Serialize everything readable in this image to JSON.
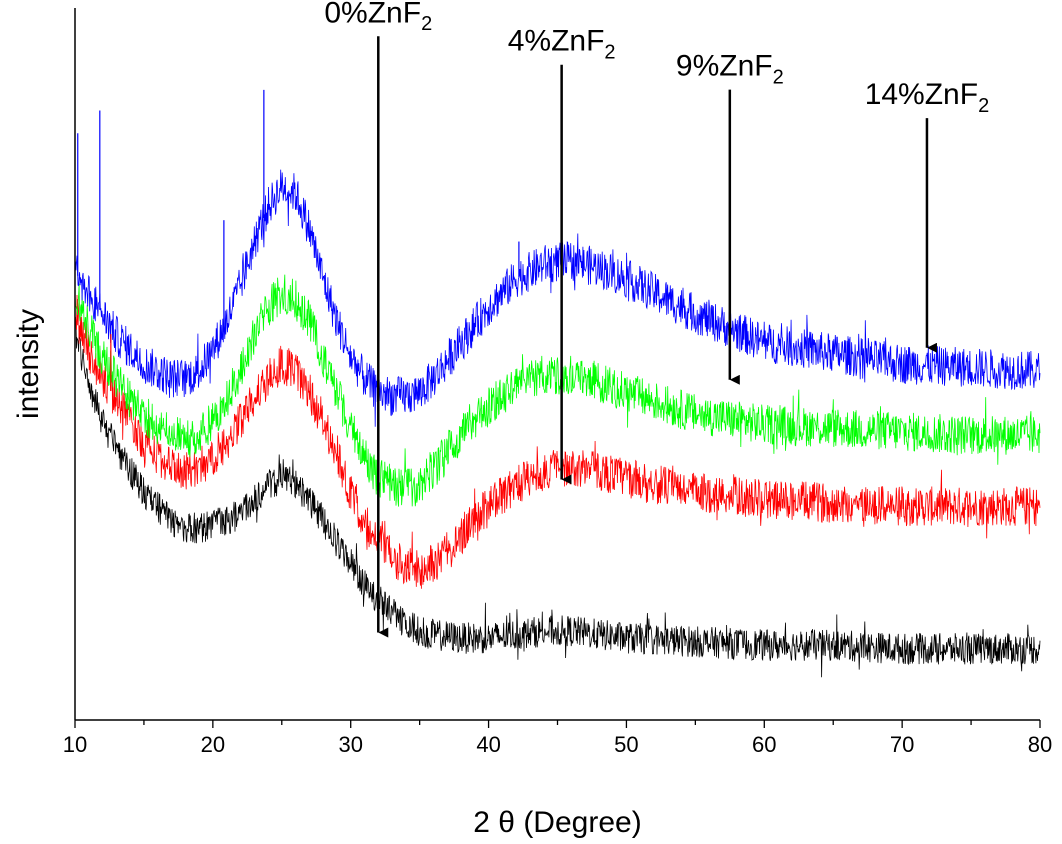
{
  "chart_data": {
    "type": "line",
    "title": "",
    "xlabel": "2 θ (Degree)",
    "ylabel": "intensity",
    "xlim": [
      10,
      80
    ],
    "ylim": [
      0,
      100
    ],
    "x_ticks": [
      "10",
      "20",
      "30",
      "40",
      "50",
      "60",
      "70",
      "80"
    ],
    "y_ticks_visible": false,
    "grid": false,
    "legend": "none",
    "series": [
      {
        "color": "#000000",
        "x": [
          10,
          11,
          12,
          13,
          14,
          15,
          16,
          17,
          18,
          19,
          20,
          21,
          22,
          23,
          24,
          25,
          26,
          27,
          28,
          29,
          30,
          31,
          32,
          33,
          34,
          35,
          36,
          38,
          40,
          42,
          44,
          46,
          48,
          50,
          55,
          60,
          65,
          70,
          75,
          80
        ],
        "values": [
          55,
          47,
          42,
          38,
          35,
          32,
          30,
          28,
          27,
          27,
          27.5,
          28,
          29,
          31,
          33,
          34,
          33,
          31,
          28,
          25,
          22,
          19,
          17,
          15,
          13.5,
          12.5,
          12,
          11.5,
          11.5,
          12,
          12.5,
          12.5,
          12,
          11.5,
          11,
          10.5,
          10.5,
          10,
          10,
          10
        ]
      },
      {
        "color": "#ff0000",
        "x": [
          10,
          11,
          12,
          13,
          14,
          15,
          16,
          17,
          18,
          19,
          20,
          21,
          22,
          23,
          24,
          25,
          26,
          27,
          28,
          29,
          30,
          31,
          32,
          33,
          34,
          35,
          36,
          38,
          40,
          42,
          44,
          46,
          48,
          50,
          55,
          60,
          65,
          70,
          75,
          80
        ],
        "values": [
          58,
          52,
          48,
          45,
          42,
          39,
          37,
          35.5,
          35,
          35.5,
          37,
          39,
          42,
          45,
          48,
          50,
          49,
          46,
          42,
          37,
          32,
          28,
          25,
          23,
          21.5,
          21,
          22,
          26,
          30,
          33,
          35,
          35.5,
          35,
          34,
          32,
          31,
          30.5,
          30,
          30,
          30
        ]
      },
      {
        "color": "#00ff00",
        "x": [
          10,
          11,
          12,
          13,
          14,
          15,
          16,
          17,
          18,
          19,
          20,
          21,
          22,
          23,
          24,
          25,
          26,
          27,
          28,
          29,
          30,
          31,
          32,
          33,
          34,
          35,
          36,
          38,
          40,
          42,
          44,
          46,
          48,
          50,
          55,
          60,
          65,
          70,
          75,
          80
        ],
        "values": [
          60,
          55,
          51,
          48,
          45,
          43,
          41,
          40,
          39.5,
          40,
          42,
          45,
          49,
          54,
          58,
          60,
          59,
          56,
          51,
          46,
          41,
          37,
          34,
          33,
          32.5,
          33,
          35,
          40,
          44,
          47,
          48.5,
          48.5,
          47.5,
          46,
          43,
          41.5,
          41,
          40.5,
          40,
          40
        ]
      },
      {
        "color": "#0000ff",
        "x": [
          10,
          11,
          12,
          13,
          14,
          15,
          16,
          17,
          18,
          19,
          20,
          21,
          22,
          23,
          24,
          25,
          26,
          27,
          28,
          29,
          30,
          31,
          32,
          33,
          34,
          35,
          36,
          38,
          40,
          42,
          44,
          46,
          48,
          50,
          55,
          60,
          65,
          70,
          75,
          80
        ],
        "values": [
          63,
          60,
          57,
          54,
          52,
          50,
          49,
          48,
          48,
          49,
          52,
          56,
          61,
          67,
          72,
          75,
          74,
          69,
          62,
          56,
          51,
          48,
          46,
          45.5,
          45.5,
          46,
          48,
          53,
          58,
          62,
          64,
          64.5,
          63.5,
          62,
          57,
          53,
          51.5,
          50,
          49.5,
          49
        ]
      }
    ],
    "spikes": [
      {
        "x": 10.2,
        "height": 20,
        "series": 3
      },
      {
        "x": 11.8,
        "height": 28,
        "series": 3
      },
      {
        "x": 20.8,
        "height": 15,
        "series": 3
      },
      {
        "x": 23.7,
        "height": 18,
        "series": 3
      },
      {
        "x": 42.2,
        "height": 5,
        "series": 3
      },
      {
        "x": 12.6,
        "height": 8,
        "series": 1
      }
    ],
    "annotations": [
      {
        "label": "0%ZnF",
        "subscript": "2",
        "arrow_x": 32,
        "text_y": 98,
        "arrow_to_y": 12
      },
      {
        "label": "4%ZnF",
        "subscript": "2",
        "arrow_x": 45.3,
        "text_y": 94,
        "arrow_to_y": 33.5
      },
      {
        "label": "9%ZnF",
        "subscript": "2",
        "arrow_x": 57.5,
        "text_y": 90.5,
        "arrow_to_y": 47.5
      },
      {
        "label": "14%ZnF",
        "subscript": "2",
        "arrow_x": 71.8,
        "text_y": 86.5,
        "arrow_to_y": 52
      }
    ]
  }
}
